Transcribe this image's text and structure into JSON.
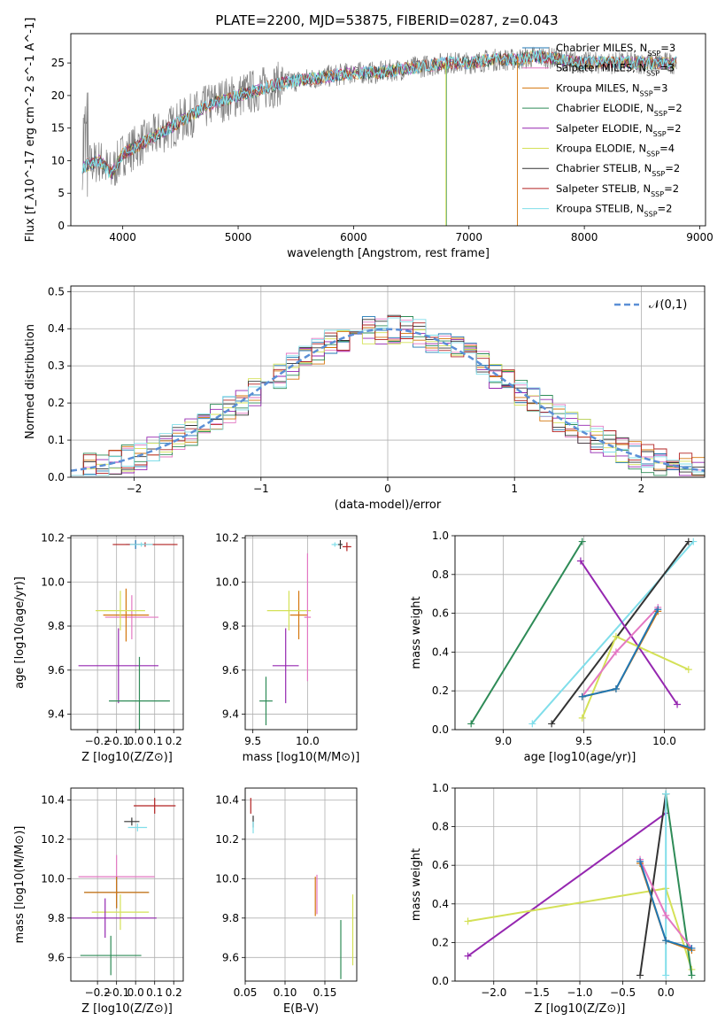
{
  "page_title": "PLATE=2200, MJD=53875, FIBERID=0287, z=0.043",
  "chart_data": [
    {
      "id": "spectrum",
      "type": "line",
      "title": "PLATE=2200, MJD=53875, FIBERID=0287, z=0.043",
      "xlabel": "wavelength [Angstrom, rest frame]",
      "ylabel": "Flux [f_λ10^-17 erg cm^-2 s^-1 A^-1]",
      "xlim": [
        3550,
        9050
      ],
      "ylim": [
        0,
        29.5
      ],
      "xticks": [
        4000,
        5000,
        6000,
        7000,
        8000,
        9000
      ],
      "yticks": [
        0,
        5,
        10,
        15,
        20,
        25
      ],
      "grid": false,
      "legend_position": "top-right",
      "series": [
        {
          "name": "Chabrier MILES, N_SSP=3",
          "color": "#1f77b4"
        },
        {
          "name": "Salpeter MILES, N_SSP=3",
          "color": "#e377c2"
        },
        {
          "name": "Kroupa MILES, N_SSP=3",
          "color": "#d4760d"
        },
        {
          "name": "Chabrier ELODIE, N_SSP=2",
          "color": "#2e8b57"
        },
        {
          "name": "Salpeter ELODIE, N_SSP=2",
          "color": "#9527b0"
        },
        {
          "name": "Kroupa ELODIE, N_SSP=4",
          "color": "#d4e157"
        },
        {
          "name": "Chabrier STELIB, N_SSP=2",
          "color": "#333333"
        },
        {
          "name": "Salpeter STELIB, N_SSP=2",
          "color": "#b22222"
        },
        {
          "name": "Kroupa STELIB, N_SSP=2",
          "color": "#80deea"
        }
      ],
      "data_color": "#808080",
      "continuum": {
        "x": [
          3650,
          3800,
          3900,
          4000,
          4200,
          4400,
          4600,
          4800,
          5000,
          5200,
          5400,
          5600,
          5800,
          6000,
          6200,
          6400,
          6600,
          6800,
          7000,
          7200,
          7400,
          7600,
          7800,
          8000,
          8200,
          8400,
          8600,
          8800
        ],
        "y": [
          9,
          10,
          8,
          11,
          13,
          15,
          17,
          19,
          20,
          21,
          22,
          22.5,
          23,
          23.5,
          23.5,
          24,
          24.5,
          25,
          25,
          25.5,
          25.5,
          26,
          25.5,
          25,
          25,
          25,
          25,
          25
        ]
      }
    },
    {
      "id": "residuals",
      "type": "histogram",
      "xlabel": "(data-model)/error",
      "ylabel": "Normed distribution",
      "xlim": [
        -2.5,
        2.5
      ],
      "ylim": [
        0,
        0.515
      ],
      "xticks": [
        -2,
        -1,
        0,
        1,
        2
      ],
      "yticks": [
        0.0,
        0.1,
        0.2,
        0.3,
        0.4,
        0.5
      ],
      "grid": true,
      "legend": [
        {
          "name": "𝒩(0,1)",
          "color": "#5b8fd6",
          "style": "dashed"
        }
      ],
      "legend_position": "top-right",
      "bin_width": 0.1
    },
    {
      "id": "age-vs-Z",
      "type": "errorbar",
      "xlabel": "Z [log10(Z/Z⊙)]",
      "ylabel": "age  [log10(age/yr)]",
      "xlim": [
        -0.34,
        0.25
      ],
      "ylim": [
        9.33,
        10.21
      ],
      "xticks": [
        -0.2,
        -0.1,
        0.0,
        0.1,
        0.2
      ],
      "yticks": [
        9.4,
        9.6,
        9.8,
        10.0,
        10.2
      ],
      "grid": true,
      "points": [
        {
          "x": 0.0,
          "y": 10.17,
          "xerr": 0.05,
          "yerr": 0.02,
          "color": "#1f77b4"
        },
        {
          "x": 0.05,
          "y": 10.17,
          "xerr": 0.17,
          "yerr": 0.01,
          "color": "#b22222"
        },
        {
          "x": 0.03,
          "y": 10.17,
          "xerr": 0.06,
          "yerr": 0.01,
          "color": "#80deea"
        },
        {
          "x": -0.02,
          "y": 9.84,
          "xerr": 0.14,
          "yerr": 0.1,
          "color": "#e377c2"
        },
        {
          "x": -0.05,
          "y": 9.85,
          "xerr": 0.12,
          "yerr": 0.12,
          "color": "#d4760d"
        },
        {
          "x": -0.08,
          "y": 9.87,
          "xerr": 0.13,
          "yerr": 0.09,
          "color": "#d4e157"
        },
        {
          "x": -0.09,
          "y": 9.62,
          "xerr": 0.21,
          "yerr": 0.17,
          "color": "#9527b0"
        },
        {
          "x": 0.02,
          "y": 9.46,
          "xerr": 0.16,
          "yerr": 0.2,
          "color": "#2e8b57"
        }
      ]
    },
    {
      "id": "age-vs-mass",
      "type": "errorbar",
      "xlabel": "mass [log10(M/M⊙)]",
      "ylabel": "",
      "xlim": [
        9.43,
        10.45
      ],
      "ylim": [
        9.33,
        10.21
      ],
      "xticks": [
        9.5,
        10.0
      ],
      "yticks": [
        9.4,
        9.6,
        9.8,
        10.0,
        10.2
      ],
      "grid": true,
      "points": [
        {
          "x": 10.25,
          "y": 10.17,
          "xerr": 0.03,
          "yerr": 0.01,
          "color": "#80deea"
        },
        {
          "x": 10.3,
          "y": 10.17,
          "xerr": 0.02,
          "yerr": 0.02,
          "color": "#333333"
        },
        {
          "x": 10.36,
          "y": 10.16,
          "xerr": 0.04,
          "yerr": 0.02,
          "color": "#b22222"
        },
        {
          "x": 9.92,
          "y": 9.85,
          "xerr": 0.08,
          "yerr": 0.11,
          "color": "#d4760d"
        },
        {
          "x": 9.83,
          "y": 9.87,
          "xerr": 0.2,
          "yerr": 0.09,
          "color": "#d4e157"
        },
        {
          "x": 9.8,
          "y": 9.62,
          "xerr": 0.12,
          "yerr": 0.17,
          "color": "#9527b0"
        },
        {
          "x": 9.62,
          "y": 9.46,
          "xerr": 0.06,
          "yerr": 0.11,
          "color": "#2e8b57"
        },
        {
          "x": 10.0,
          "y": 9.84,
          "xerr": 0.03,
          "yerr": 0.29,
          "color": "#e377c2"
        }
      ]
    },
    {
      "id": "weight-vs-age",
      "type": "line",
      "xlabel": "age  [log10(age/yr)]",
      "ylabel": "mass weight",
      "xlim": [
        8.7,
        10.25
      ],
      "ylim": [
        0.0,
        1.0
      ],
      "xticks": [
        9.0,
        9.5,
        10.0
      ],
      "yticks": [
        0.0,
        0.2,
        0.4,
        0.6,
        0.8,
        1.0
      ],
      "grid": true,
      "series": [
        {
          "color": "#2e8b57",
          "x": [
            8.8,
            9.49
          ],
          "y": [
            0.03,
            0.97
          ]
        },
        {
          "color": "#80deea",
          "x": [
            9.18,
            10.18
          ],
          "y": [
            0.03,
            0.97
          ]
        },
        {
          "color": "#333333",
          "x": [
            9.3,
            10.15
          ],
          "y": [
            0.03,
            0.97
          ]
        },
        {
          "color": "#9527b0",
          "x": [
            9.48,
            10.08
          ],
          "y": [
            0.87,
            0.13
          ]
        },
        {
          "color": "#d4e157",
          "x": [
            9.49,
            9.7,
            10.15
          ],
          "y": [
            0.06,
            0.48,
            0.31
          ]
        },
        {
          "color": "#e377c2",
          "x": [
            9.49,
            9.7,
            9.96
          ],
          "y": [
            0.17,
            0.4,
            0.63
          ]
        },
        {
          "color": "#d4760d",
          "x": [
            9.49,
            9.7,
            9.96
          ],
          "y": [
            0.17,
            0.21,
            0.61
          ]
        },
        {
          "color": "#1f77b4",
          "x": [
            9.49,
            9.7,
            9.96
          ],
          "y": [
            0.17,
            0.21,
            0.62
          ]
        }
      ]
    },
    {
      "id": "mass-vs-Z",
      "type": "errorbar",
      "xlabel": "Z [log10(Z/Z⊙)]",
      "ylabel": "mass [log10(M/M⊙)]",
      "xlim": [
        -0.34,
        0.25
      ],
      "ylim": [
        9.48,
        10.46
      ],
      "xticks": [
        -0.2,
        -0.1,
        0.0,
        0.1,
        0.2
      ],
      "yticks": [
        9.6,
        9.8,
        10.0,
        10.2,
        10.4
      ],
      "grid": true,
      "points": [
        {
          "x": 0.1,
          "y": 10.37,
          "xerr": 0.11,
          "yerr": 0.04,
          "color": "#b22222"
        },
        {
          "x": -0.02,
          "y": 10.29,
          "xerr": 0.04,
          "yerr": 0.02,
          "color": "#333333"
        },
        {
          "x": 0.01,
          "y": 10.26,
          "xerr": 0.05,
          "yerr": 0.02,
          "color": "#80deea"
        },
        {
          "x": -0.1,
          "y": 10.01,
          "xerr": 0.2,
          "yerr": 0.11,
          "color": "#e377c2"
        },
        {
          "x": -0.1,
          "y": 9.93,
          "xerr": 0.17,
          "yerr": 0.08,
          "color": "#1f77b4"
        },
        {
          "x": -0.1,
          "y": 9.93,
          "xerr": 0.17,
          "yerr": 0.08,
          "color": "#d4760d"
        },
        {
          "x": -0.08,
          "y": 9.83,
          "xerr": 0.15,
          "yerr": 0.09,
          "color": "#d4e157"
        },
        {
          "x": -0.16,
          "y": 9.8,
          "xerr": 0.27,
          "yerr": 0.1,
          "color": "#9527b0"
        },
        {
          "x": -0.13,
          "y": 9.61,
          "xerr": 0.16,
          "yerr": 0.1,
          "color": "#2e8b57"
        }
      ]
    },
    {
      "id": "mass-vs-EBV",
      "type": "errorbar",
      "xlabel": "E(B-V)",
      "ylabel": "",
      "xlim": [
        0.05,
        0.19
      ],
      "ylim": [
        9.48,
        10.46
      ],
      "xticks": [
        0.05,
        0.1,
        0.15
      ],
      "yticks": [
        9.6,
        9.8,
        10.0,
        10.2,
        10.4
      ],
      "grid": true,
      "points": [
        {
          "x": 0.057,
          "y": 10.37,
          "xerr": 0,
          "yerr": 0.04,
          "color": "#b22222"
        },
        {
          "x": 0.06,
          "y": 10.29,
          "xerr": 0,
          "yerr": 0.03,
          "color": "#333333"
        },
        {
          "x": 0.06,
          "y": 10.26,
          "xerr": 0,
          "yerr": 0.03,
          "color": "#80deea"
        },
        {
          "x": 0.14,
          "y": 9.92,
          "xerr": 0,
          "yerr": 0.1,
          "color": "#e377c2"
        },
        {
          "x": 0.138,
          "y": 9.91,
          "xerr": 0,
          "yerr": 0.1,
          "color": "#d4760d"
        },
        {
          "x": 0.17,
          "y": 9.64,
          "xerr": 0,
          "yerr": 0.15,
          "color": "#2e8b57"
        },
        {
          "x": 0.185,
          "y": 9.74,
          "xerr": 0,
          "yerr": 0.18,
          "color": "#d4e157"
        }
      ]
    },
    {
      "id": "weight-vs-Z",
      "type": "line",
      "xlabel": "Z [log10(Z/Z⊙)]",
      "ylabel": "mass weight",
      "xlim": [
        -2.45,
        0.45
      ],
      "ylim": [
        0.0,
        1.0
      ],
      "xticks": [
        -2.0,
        -1.5,
        -1.0,
        -0.5,
        0.0
      ],
      "yticks": [
        0.0,
        0.2,
        0.4,
        0.6,
        0.8,
        1.0
      ],
      "grid": true,
      "series": [
        {
          "color": "#9527b0",
          "x": [
            -2.3,
            0.0
          ],
          "y": [
            0.13,
            0.87
          ]
        },
        {
          "color": "#d4e157",
          "x": [
            -2.3,
            0.0,
            0.3
          ],
          "y": [
            0.31,
            0.48,
            0.06
          ]
        },
        {
          "color": "#2e8b57",
          "x": [
            0.0,
            0.3
          ],
          "y": [
            0.97,
            0.03
          ]
        },
        {
          "color": "#333333",
          "x": [
            -0.3,
            0.0
          ],
          "y": [
            0.03,
            0.97
          ]
        },
        {
          "color": "#80deea",
          "x": [
            0.0,
            0.0
          ],
          "y": [
            0.03,
            0.97
          ]
        },
        {
          "color": "#e377c2",
          "x": [
            -0.3,
            0.0,
            0.3
          ],
          "y": [
            0.63,
            0.34,
            0.17
          ]
        },
        {
          "color": "#d4760d",
          "x": [
            -0.3,
            0.0,
            0.3
          ],
          "y": [
            0.61,
            0.21,
            0.16
          ]
        },
        {
          "color": "#1f77b4",
          "x": [
            -0.3,
            0.0,
            0.3
          ],
          "y": [
            0.62,
            0.21,
            0.17
          ]
        }
      ]
    }
  ]
}
